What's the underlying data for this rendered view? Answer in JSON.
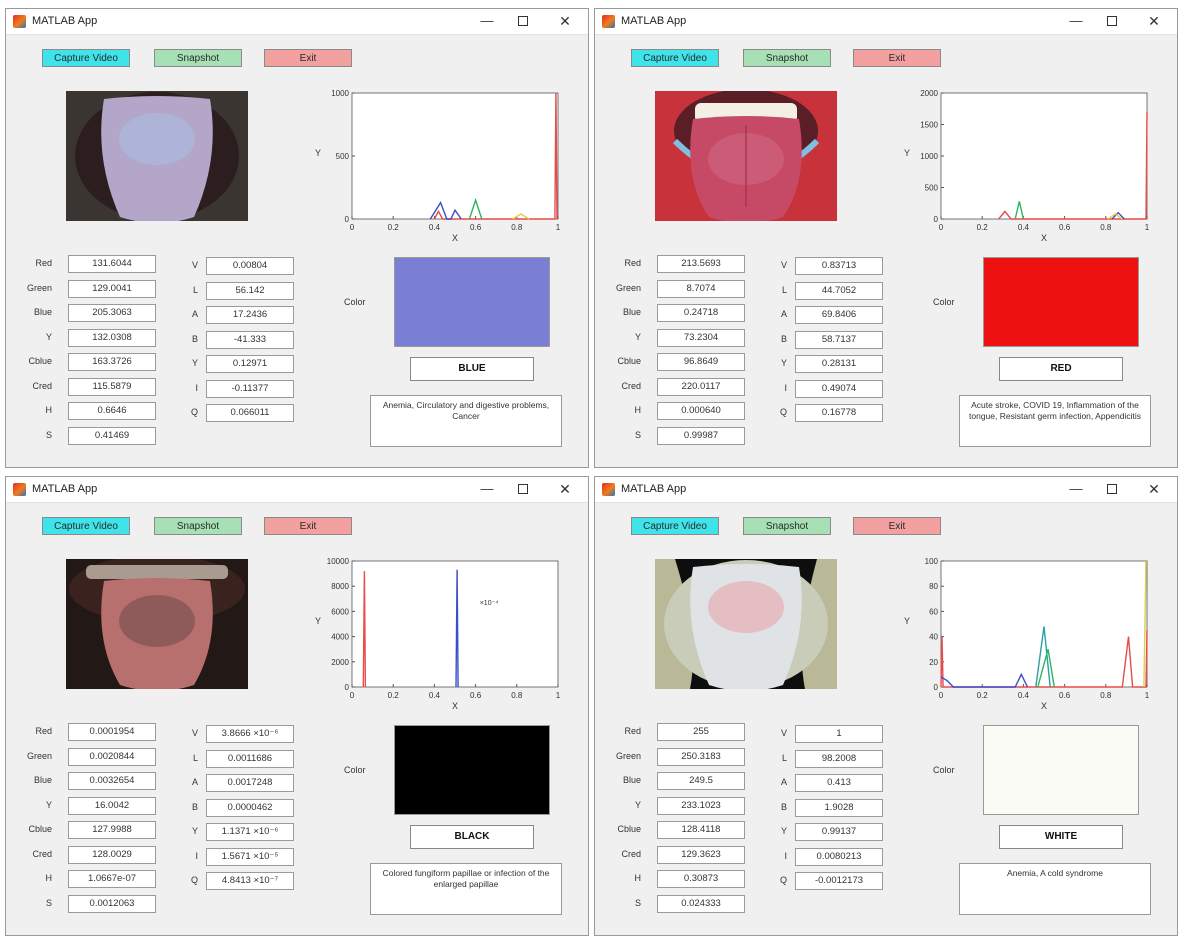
{
  "windows": [
    {
      "id": "blue",
      "title": "MATLAB App",
      "buttons": {
        "capture": "Capture Video",
        "snapshot": "Snapshot",
        "exit": "Exit"
      },
      "left_fields": [
        {
          "label": "Red",
          "value": "131.6044"
        },
        {
          "label": "Green",
          "value": "129.0041"
        },
        {
          "label": "Blue",
          "value": "205.3063"
        },
        {
          "label": "Y",
          "value": "132.0308"
        },
        {
          "label": "Cblue",
          "value": "163.3726"
        },
        {
          "label": "Cred",
          "value": "115.5879"
        },
        {
          "label": "H",
          "value": "0.6646"
        },
        {
          "label": "S",
          "value": "0.41469"
        }
      ],
      "right_fields": [
        {
          "label": "V",
          "value": "0.00804"
        },
        {
          "label": "L",
          "value": "56.142"
        },
        {
          "label": "A",
          "value": "17.2436"
        },
        {
          "label": "B",
          "value": "-41.333"
        },
        {
          "label": "Y",
          "value": "0.12971"
        },
        {
          "label": "I",
          "value": "-0.11377"
        },
        {
          "label": "Q",
          "value": "0.066011"
        }
      ],
      "color_label": "Color",
      "swatch_color": "#7b7fd4",
      "color_name": "BLUE",
      "diseases": "Anemia, Circulatory and digestive problems, Cancer",
      "chart_data": {
        "type": "line",
        "ylabel": "Y",
        "xlabel": "X",
        "ylim": [
          0,
          1000
        ],
        "yticks": [
          "0",
          "500",
          "1000"
        ],
        "xticks": [
          "0",
          "0.2",
          "0.4",
          "0.6",
          "0.8",
          "1"
        ],
        "series": [
          {
            "color": "#e94b4b",
            "points": [
              [
                0.4,
                0
              ],
              [
                0.42,
                60
              ],
              [
                0.44,
                0
              ],
              [
                0.985,
                0
              ],
              [
                0.99,
                1000
              ],
              [
                0.995,
                0
              ]
            ]
          },
          {
            "color": "#3b4fc9",
            "points": [
              [
                0.38,
                0
              ],
              [
                0.43,
                130
              ],
              [
                0.46,
                0
              ],
              [
                0.48,
                0
              ],
              [
                0.5,
                70
              ],
              [
                0.53,
                0
              ]
            ]
          },
          {
            "color": "#2db35f",
            "points": [
              [
                0.57,
                0
              ],
              [
                0.6,
                150
              ],
              [
                0.63,
                0
              ]
            ]
          },
          {
            "color": "#e0d04a",
            "points": [
              [
                0.78,
                0
              ],
              [
                0.82,
                40
              ],
              [
                0.86,
                0
              ]
            ]
          }
        ]
      }
    },
    {
      "id": "red",
      "title": "MATLAB App",
      "buttons": {
        "capture": "Capture Video",
        "snapshot": "Snapshot",
        "exit": "Exit"
      },
      "left_fields": [
        {
          "label": "Red",
          "value": "213.5693"
        },
        {
          "label": "Green",
          "value": "8.7074"
        },
        {
          "label": "Blue",
          "value": "0.24718"
        },
        {
          "label": "Y",
          "value": "73.2304"
        },
        {
          "label": "Cblue",
          "value": "96.8649"
        },
        {
          "label": "Cred",
          "value": "220.0117"
        },
        {
          "label": "H",
          "value": "0.000640"
        },
        {
          "label": "S",
          "value": "0.99987"
        }
      ],
      "right_fields": [
        {
          "label": "V",
          "value": "0.83713"
        },
        {
          "label": "L",
          "value": "44.7052"
        },
        {
          "label": "A",
          "value": "69.8406"
        },
        {
          "label": "B",
          "value": "58.7137"
        },
        {
          "label": "Y",
          "value": "0.28131"
        },
        {
          "label": "I",
          "value": "0.49074"
        },
        {
          "label": "Q",
          "value": "0.16778"
        }
      ],
      "color_label": "Color",
      "swatch_color": "#ee1111",
      "color_name": "RED",
      "diseases": "Acute stroke, COVID 19, Inflammation of the tongue, Resistant germ infection, Appendicitis",
      "chart_data": {
        "type": "line",
        "ylabel": "Y",
        "xlabel": "X",
        "ylim": [
          0,
          2000
        ],
        "yticks": [
          "0",
          "500",
          "1000",
          "1500",
          "2000"
        ],
        "xticks": [
          "0",
          "0.2",
          "0.4",
          "0.6",
          "0.8",
          "1"
        ],
        "series": [
          {
            "color": "#e94b4b",
            "points": [
              [
                0.28,
                0
              ],
              [
                0.31,
                120
              ],
              [
                0.34,
                0
              ],
              [
                0.995,
                0
              ],
              [
                1.0,
                1700
              ]
            ]
          },
          {
            "color": "#2db35f",
            "points": [
              [
                0.36,
                0
              ],
              [
                0.38,
                280
              ],
              [
                0.4,
                0
              ]
            ]
          },
          {
            "color": "#3b4fc9",
            "points": [
              [
                0.83,
                0
              ],
              [
                0.86,
                100
              ],
              [
                0.89,
                0
              ]
            ]
          },
          {
            "color": "#e0d04a",
            "points": [
              [
                0.81,
                0
              ],
              [
                0.845,
                80
              ],
              [
                0.88,
                0
              ]
            ]
          }
        ]
      }
    },
    {
      "id": "black",
      "title": "MATLAB App",
      "buttons": {
        "capture": "Capture Video",
        "snapshot": "Snapshot",
        "exit": "Exit"
      },
      "left_fields": [
        {
          "label": "Red",
          "value": "0.0001954"
        },
        {
          "label": "Green",
          "value": "0.0020844"
        },
        {
          "label": "Blue",
          "value": "0.0032654"
        },
        {
          "label": "Y",
          "value": "16.0042"
        },
        {
          "label": "Cblue",
          "value": "127.9988"
        },
        {
          "label": "Cred",
          "value": "128.0029"
        },
        {
          "label": "H",
          "value": "1.0667e-07"
        },
        {
          "label": "S",
          "value": "0.0012063"
        }
      ],
      "right_fields": [
        {
          "label": "V",
          "value": "3.8666 ×10⁻⁶"
        },
        {
          "label": "L",
          "value": "0.0011686"
        },
        {
          "label": "A",
          "value": "0.0017248"
        },
        {
          "label": "B",
          "value": "0.0000462"
        },
        {
          "label": "Y",
          "value": "1.1371 ×10⁻⁶"
        },
        {
          "label": "I",
          "value": "1.5671 ×10⁻⁵"
        },
        {
          "label": "Q",
          "value": "4.8413 ×10⁻⁷"
        }
      ],
      "color_label": "Color",
      "swatch_color": "#000000",
      "color_name": "BLACK",
      "diseases": "Colored fungiform papillae or infection of the enlarged papillae",
      "chart_data": {
        "type": "line",
        "ylabel": "Y",
        "xlabel": "X",
        "ylim": [
          0,
          10000
        ],
        "yticks": [
          "0",
          "2000",
          "4000",
          "6000",
          "8000",
          "10000"
        ],
        "xticks": [
          "0",
          "0.2",
          "0.4",
          "0.6",
          "0.8",
          "1"
        ],
        "annotation": "×10⁻⁴",
        "series": [
          {
            "color": "#e94b4b",
            "points": [
              [
                0.055,
                0
              ],
              [
                0.06,
                9200
              ],
              [
                0.065,
                0
              ]
            ]
          },
          {
            "color": "#3b4fc9",
            "points": [
              [
                0.505,
                0
              ],
              [
                0.51,
                9300
              ],
              [
                0.515,
                0
              ]
            ]
          }
        ]
      }
    },
    {
      "id": "white",
      "title": "MATLAB App",
      "buttons": {
        "capture": "Capture Video",
        "snapshot": "Snapshot",
        "exit": "Exit"
      },
      "left_fields": [
        {
          "label": "Red",
          "value": "255"
        },
        {
          "label": "Green",
          "value": "250.3183"
        },
        {
          "label": "Blue",
          "value": "249.5"
        },
        {
          "label": "Y",
          "value": "233.1023"
        },
        {
          "label": "Cblue",
          "value": "128.4118"
        },
        {
          "label": "Cred",
          "value": "129.3623"
        },
        {
          "label": "H",
          "value": "0.30873"
        },
        {
          "label": "S",
          "value": "0.024333"
        }
      ],
      "right_fields": [
        {
          "label": "V",
          "value": "1"
        },
        {
          "label": "L",
          "value": "98.2008"
        },
        {
          "label": "A",
          "value": "0.413"
        },
        {
          "label": "B",
          "value": "1.9028"
        },
        {
          "label": "Y",
          "value": "0.99137"
        },
        {
          "label": "I",
          "value": "0.0080213"
        },
        {
          "label": "Q",
          "value": "-0.0012173"
        }
      ],
      "color_label": "Color",
      "swatch_color": "#fbfbf5",
      "color_name": "WHITE",
      "diseases": "Anemia, A cold syndrome",
      "chart_data": {
        "type": "line",
        "ylabel": "Y",
        "xlabel": "X",
        "ylim": [
          0,
          100
        ],
        "yticks": [
          "0",
          "20",
          "40",
          "60",
          "80",
          "100"
        ],
        "xticks": [
          "0",
          "0.2",
          "0.4",
          "0.6",
          "0.8",
          "1"
        ],
        "series": [
          {
            "color": "#e94b4b",
            "points": [
              [
                0,
                0
              ],
              [
                0.005,
                40
              ],
              [
                0.01,
                0
              ],
              [
                0.88,
                0
              ],
              [
                0.91,
                40
              ],
              [
                0.93,
                0
              ],
              [
                0.995,
                0
              ],
              [
                1.0,
                45
              ]
            ]
          },
          {
            "color": "#2aa0a8",
            "points": [
              [
                0.46,
                0
              ],
              [
                0.5,
                48
              ],
              [
                0.53,
                0
              ]
            ]
          },
          {
            "color": "#2db35f",
            "points": [
              [
                0.47,
                0
              ],
              [
                0.52,
                30
              ],
              [
                0.55,
                0
              ]
            ]
          },
          {
            "color": "#3b4fc9",
            "points": [
              [
                0.0,
                8
              ],
              [
                0.03,
                5
              ],
              [
                0.06,
                0
              ],
              [
                0.36,
                0
              ],
              [
                0.39,
                10
              ],
              [
                0.42,
                0
              ]
            ]
          },
          {
            "color": "#e0d04a",
            "points": [
              [
                0.985,
                0
              ],
              [
                0.995,
                100
              ]
            ]
          }
        ]
      }
    }
  ]
}
